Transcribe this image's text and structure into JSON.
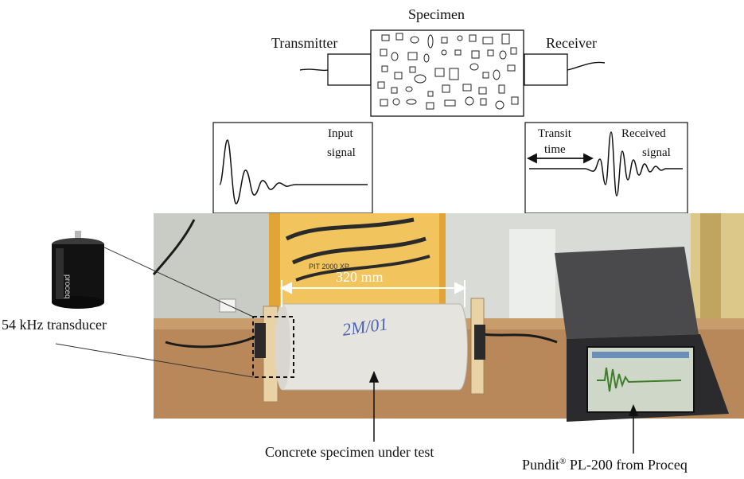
{
  "diagram": {
    "specimen_label": "Specimen",
    "transmitter_label": "Transmitter",
    "receiver_label": "Receiver",
    "input_signal_line1": "Input",
    "input_signal_line2": "signal",
    "transit_line1": "Transit",
    "transit_line2": "time",
    "received_line1": "Received",
    "received_line2": "signal"
  },
  "photo": {
    "length_label": "320 mm",
    "transducer_label": "54 kHz transducer",
    "transducer_brand": "proceq",
    "specimen_caption": "Concrete specimen under test",
    "device_caption_prefix": "Pundit",
    "device_caption_sup": "®",
    "device_caption_suffix": " PL-200 from Proceq",
    "specimen_handwriting": "2M/01",
    "device_badge": "PIT 2000 XP"
  },
  "colors": {
    "wall": "#d9dcd6",
    "table": "#b8885a",
    "specimen": "#e6e4de",
    "device_case": "#2b2b2d",
    "screen": "#cfd8c8",
    "accent_orange": "#e0a534"
  }
}
